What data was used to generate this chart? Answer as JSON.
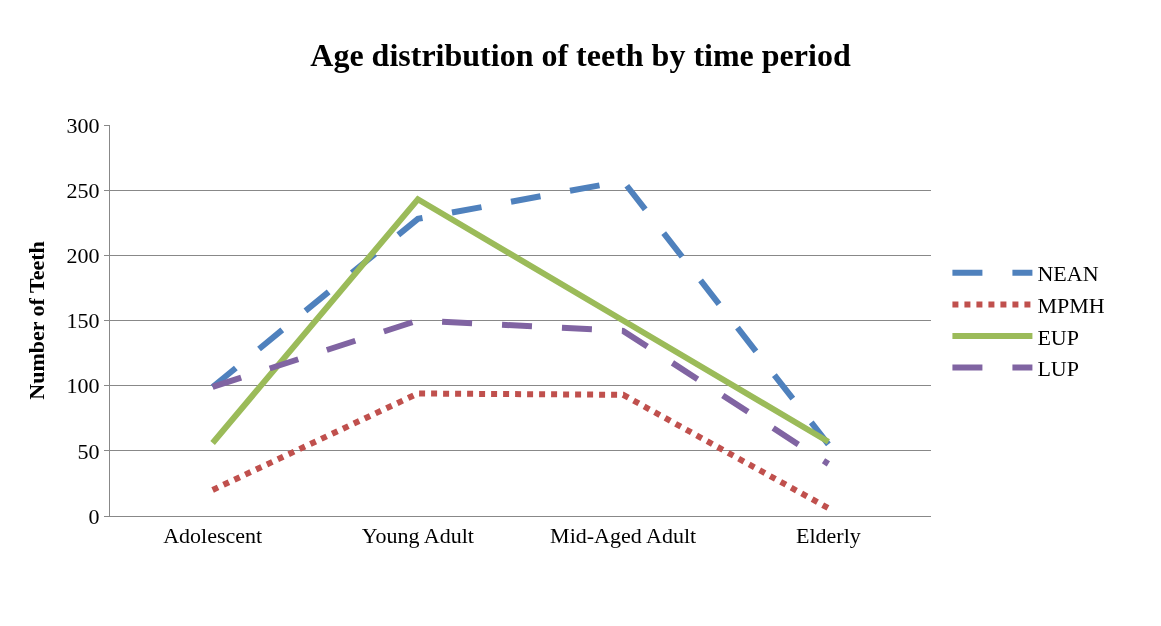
{
  "chart_data": {
    "type": "line",
    "title": "Age distribution of teeth by time period",
    "ylabel": "Number of Teeth",
    "categories": [
      "Adolescent",
      "Young Adult",
      "Mid-Aged Adult",
      "Elderly"
    ],
    "series": [
      {
        "name": "NEAN",
        "color": "#4f81bd",
        "values": [
          99,
          228,
          257,
          55
        ],
        "line_style": "dashed"
      },
      {
        "name": "MPMH",
        "color": "#c0504d",
        "values": [
          20,
          94,
          93,
          6
        ],
        "line_style": "dotted"
      },
      {
        "name": "EUP",
        "color": "#9bbb59",
        "values": [
          56,
          243,
          150,
          57
        ],
        "line_style": "solid"
      },
      {
        "name": "LUP",
        "color": "#8064a2",
        "values": [
          99,
          150,
          142,
          40
        ],
        "line_style": "dashed"
      }
    ],
    "ylim": [
      0,
      300
    ],
    "yticks": [
      0,
      50,
      100,
      150,
      200,
      250,
      300
    ],
    "grid": "y",
    "legend": "right",
    "marker": "none"
  }
}
